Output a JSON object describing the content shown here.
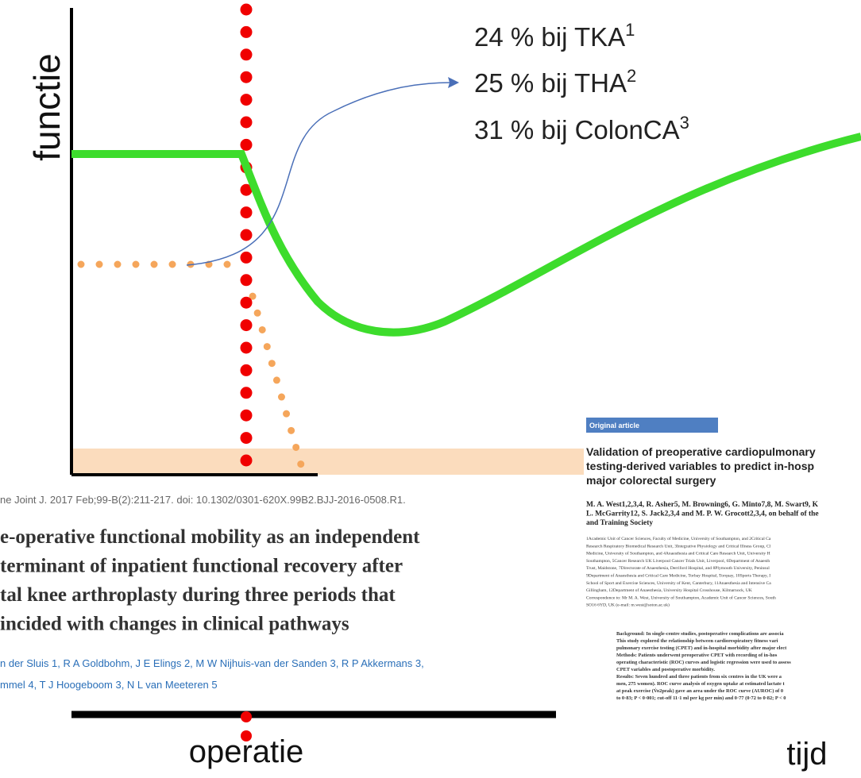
{
  "diagram": {
    "y_axis_label": "functie",
    "x_axis_label_event": "operatie",
    "x_axis_label_time": "tijd",
    "annotations": [
      {
        "text": "24 % bij TKA",
        "ref": "1"
      },
      {
        "text": "25 % bij THA",
        "ref": "2"
      },
      {
        "text": "31 % bij ColonCA",
        "ref": "3"
      }
    ]
  },
  "clipping_1": {
    "citation": "ne Joint J. 2017 Feb;99-B(2):211-217. doi: 10.1302/0301-620X.99B2.BJJ-2016-0508.R1.",
    "title_lines": [
      "e-operative functional mobility as an independent",
      "terminant of inpatient functional recovery after",
      "tal knee arthroplasty during three periods that",
      "incided with changes in clinical pathways"
    ],
    "author_lines": [
      "n der Sluis 1, R A Goldbohm, J E Elings 2, M W Nijhuis-van der Sanden 3, R P Akkermans 3,",
      "mmel 4, T J Hoogeboom 3, N L van Meeteren 5"
    ]
  },
  "clipping_2": {
    "section": "Original article",
    "title_lines": [
      "Validation of preoperative cardiopulmonary",
      "testing-derived variables to predict in-hosp",
      "major colorectal surgery"
    ],
    "author_lines": [
      "M. A. West1,2,3,4, R. Asher5, M. Browning6, G. Minto7,8, M. Swart9, K",
      "L. McGarrity12, S. Jack2,3,4 and M. P. W. Grocott2,3,4, on behalf of the",
      "and Training Society"
    ],
    "affiliation_lines": [
      "1Academic Unit of Cancer Sciences, Faculty of Medicine, University of Southampton, and 2Critical Ca",
      "Research Respiratory Biomedical Research Unit, 3Integrative Physiology and Critical Illness Group, Cl",
      "Medicine, University of Southampton, and 4Anaesthesia and Critical Care Research Unit, University H",
      "Southampton, 5Cancer Research UK Liverpool Cancer Trials Unit, Liverpool, 6Department of Anaesth",
      "Trust, Maidstone, 7Directorate of Anaesthesia, Derriford Hospital, and 8Plymouth University, Peninsul",
      "9Department of Anaesthesia and Critical Care Medicine, Torbay Hospital, Torquay, 10Sports Therapy, I",
      "School of Sport and Exercise Sciences, University of Kent, Canterbury, 11Anaesthesia and Intensive Ca",
      "Gillingham, 12Department of Anaesthesia, University Hospital Crosshouse, Kilmarnock, UK",
      "Correspondence to: Mr M. A. West, University of Southampton, Academic Unit of Cancer Sciences, South",
      "SO16 6YD, UK (e-mail: m.west@soton.ac.uk)"
    ],
    "abstract_lines": [
      "Background: In single-centre studies, postoperative complications are associa",
      "This study explored the relationship between cardiorespiratory fitness vari",
      "pulmonary exercise testing (CPET) and in-hospital morbidity after major elect",
      "Methods: Patients underwent preoperative CPET with recording of in-hos",
      "operating characteristic (ROC) curves and logistic regression were used to assess",
      "CPET variables and postoperative morbidity.",
      "Results: Seven hundred and three patients from six centres in the UK were a",
      "men, 275 women). ROC curve analysis of oxygen uptake at estimated lactate t",
      "at peak exercise (V̇o2peak) gave an area under the ROC curve (AUROC) of 0",
      "to 0·83; P < 0·001; cut-off 11·1 ml per kg per min) and 0·77 (0·72 to 0·82; P < 0"
    ]
  }
}
